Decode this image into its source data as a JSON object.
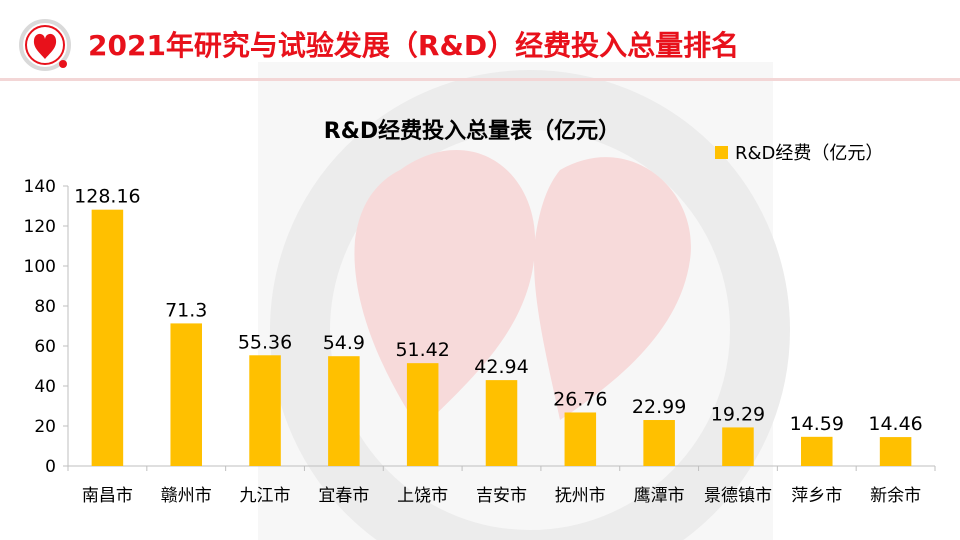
{
  "page": {
    "title": "2021年研究与试验发展（R&D）经费投入总量排名"
  },
  "colors": {
    "accent": "#e8111b",
    "bar": "#ffc000",
    "axis": "#bfbfbf",
    "text": "#000000"
  },
  "icons": {
    "logo": "heart-gear-logo-icon"
  },
  "chart_data": {
    "type": "bar",
    "title": "R&D经费投入总量表（亿元）",
    "xlabel": "",
    "ylabel": "",
    "categories": [
      "南昌市",
      "赣州市",
      "九江市",
      "宜春市",
      "上饶市",
      "吉安市",
      "抚州市",
      "鹰潭市",
      "景德镇市",
      "萍乡市",
      "新余市"
    ],
    "series": [
      {
        "name": "R&D经费（亿元）",
        "values": [
          128.16,
          71.3,
          55.36,
          54.9,
          51.42,
          42.94,
          26.76,
          22.99,
          19.29,
          14.59,
          14.46
        ],
        "labels": [
          "128.16",
          "71.3",
          "55.36",
          "54.9",
          "51.42",
          "42.94",
          "26.76",
          "22.99",
          "19.29",
          "14.59",
          "14.46"
        ]
      }
    ],
    "ylim": [
      0,
      140
    ],
    "yticks": [
      0,
      20,
      40,
      60,
      80,
      100,
      120,
      140
    ],
    "grid": false,
    "legend": "top-right"
  }
}
